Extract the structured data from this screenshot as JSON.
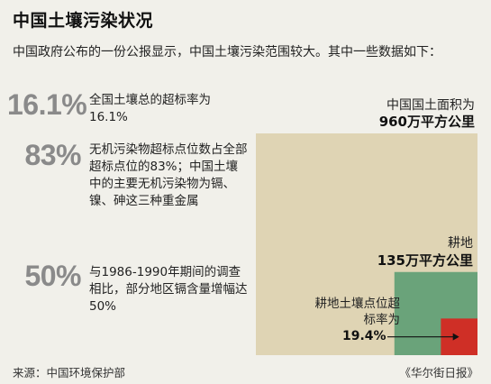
{
  "header": {
    "title": "中国土壤污染状况",
    "intro": "中国政府公布的一份公报显示，中国土壤污染范围较大。其中一些数据如下："
  },
  "stats": [
    {
      "value": "16.1%",
      "text": "全国土壤总的超标率为16.1%"
    },
    {
      "value": "83%",
      "text": "无机污染物超标点位数占全部超标点位的83%；中国土壤中的主要无机污染物为镉、镍、砷这三种重金属"
    },
    {
      "value": "50%",
      "text": "与1986-1990年期间的调查相比，部分地区镉含量增幅达50%"
    }
  ],
  "chart_data": {
    "type": "area",
    "areas": [
      {
        "label": "中国国土面积为",
        "value_text": "960万平方公里",
        "value": 960,
        "unit": "万平方公里",
        "color": "#dfd4b4"
      },
      {
        "label": "耕地",
        "value_text": "135万平方公里",
        "value": 135,
        "unit": "万平方公里",
        "color": "#6aa37a"
      },
      {
        "label": "耕地土壤点位超标率为",
        "value_text": "19.4%",
        "value": 19.4,
        "unit": "%",
        "color": "#cf2f26"
      }
    ]
  },
  "footer": {
    "source": "来源：中国环境保护部",
    "publisher": "《华尔街日报》"
  }
}
